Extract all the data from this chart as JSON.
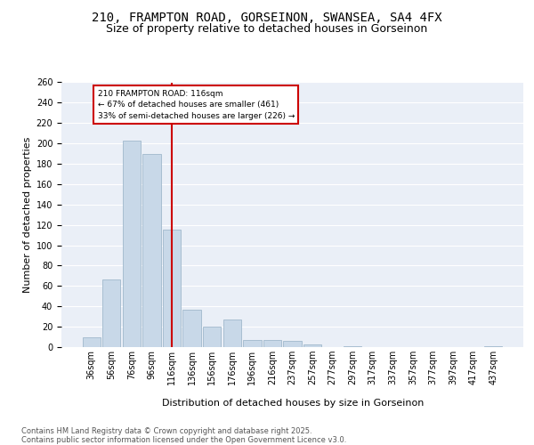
{
  "title_line1": "210, FRAMPTON ROAD, GORSEINON, SWANSEA, SA4 4FX",
  "title_line2": "Size of property relative to detached houses in Gorseinon",
  "xlabel": "Distribution of detached houses by size in Gorseinon",
  "ylabel": "Number of detached properties",
  "categories": [
    "36sqm",
    "56sqm",
    "76sqm",
    "96sqm",
    "116sqm",
    "136sqm",
    "156sqm",
    "176sqm",
    "196sqm",
    "216sqm",
    "237sqm",
    "257sqm",
    "277sqm",
    "297sqm",
    "317sqm",
    "337sqm",
    "357sqm",
    "377sqm",
    "397sqm",
    "417sqm",
    "437sqm"
  ],
  "values": [
    10,
    66,
    203,
    190,
    115,
    37,
    20,
    27,
    7,
    7,
    6,
    3,
    0,
    1,
    0,
    0,
    0,
    0,
    0,
    0,
    1
  ],
  "bar_color": "#c8d8e8",
  "bar_edge_color": "#a0b8cc",
  "vline_x_index": 4,
  "vline_color": "#cc0000",
  "annotation_text": "210 FRAMPTON ROAD: 116sqm\n← 67% of detached houses are smaller (461)\n33% of semi-detached houses are larger (226) →",
  "annotation_box_color": "#cc0000",
  "ylim": [
    0,
    260
  ],
  "yticks": [
    0,
    20,
    40,
    60,
    80,
    100,
    120,
    140,
    160,
    180,
    200,
    220,
    240,
    260
  ],
  "background_color": "#eaeff7",
  "footer_text": "Contains HM Land Registry data © Crown copyright and database right 2025.\nContains public sector information licensed under the Open Government Licence v3.0.",
  "grid_color": "#ffffff",
  "title_fontsize": 10,
  "subtitle_fontsize": 9,
  "axis_label_fontsize": 8,
  "tick_fontsize": 7,
  "footer_fontsize": 6
}
